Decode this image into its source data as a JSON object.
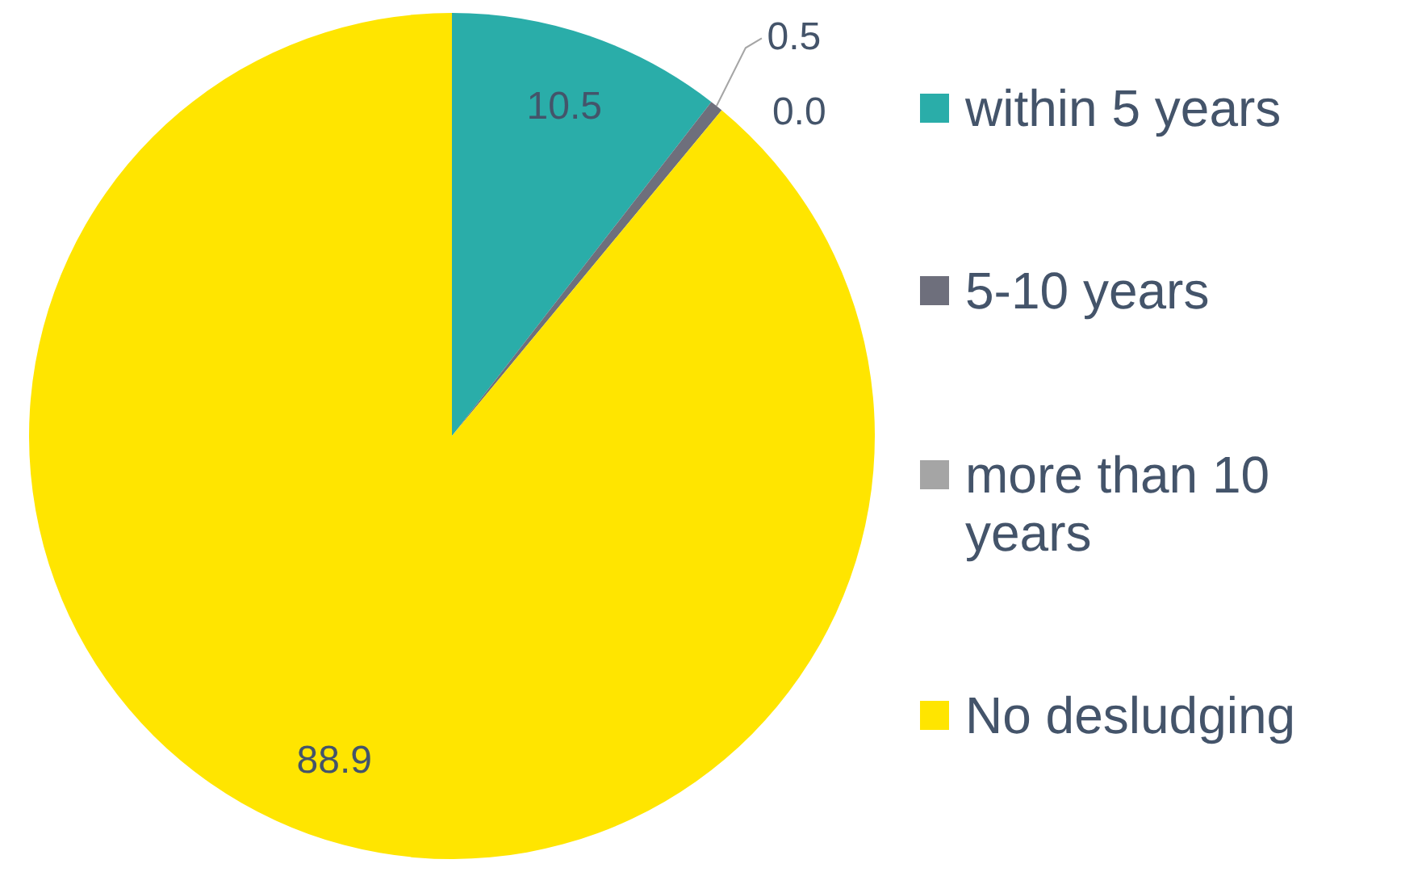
{
  "chart_data": {
    "type": "pie",
    "categories": [
      "within 5 years",
      "5-10 years",
      "more than 10 years",
      "No desludging"
    ],
    "values": [
      10.5,
      0.5,
      0.0,
      88.9
    ],
    "colors": [
      "#2aada9",
      "#6e6f7c",
      "#a5a5a5",
      "#ffe500"
    ],
    "value_labels": [
      "10.5",
      "0.5",
      "0.0",
      "88.9"
    ],
    "legend": "right"
  }
}
